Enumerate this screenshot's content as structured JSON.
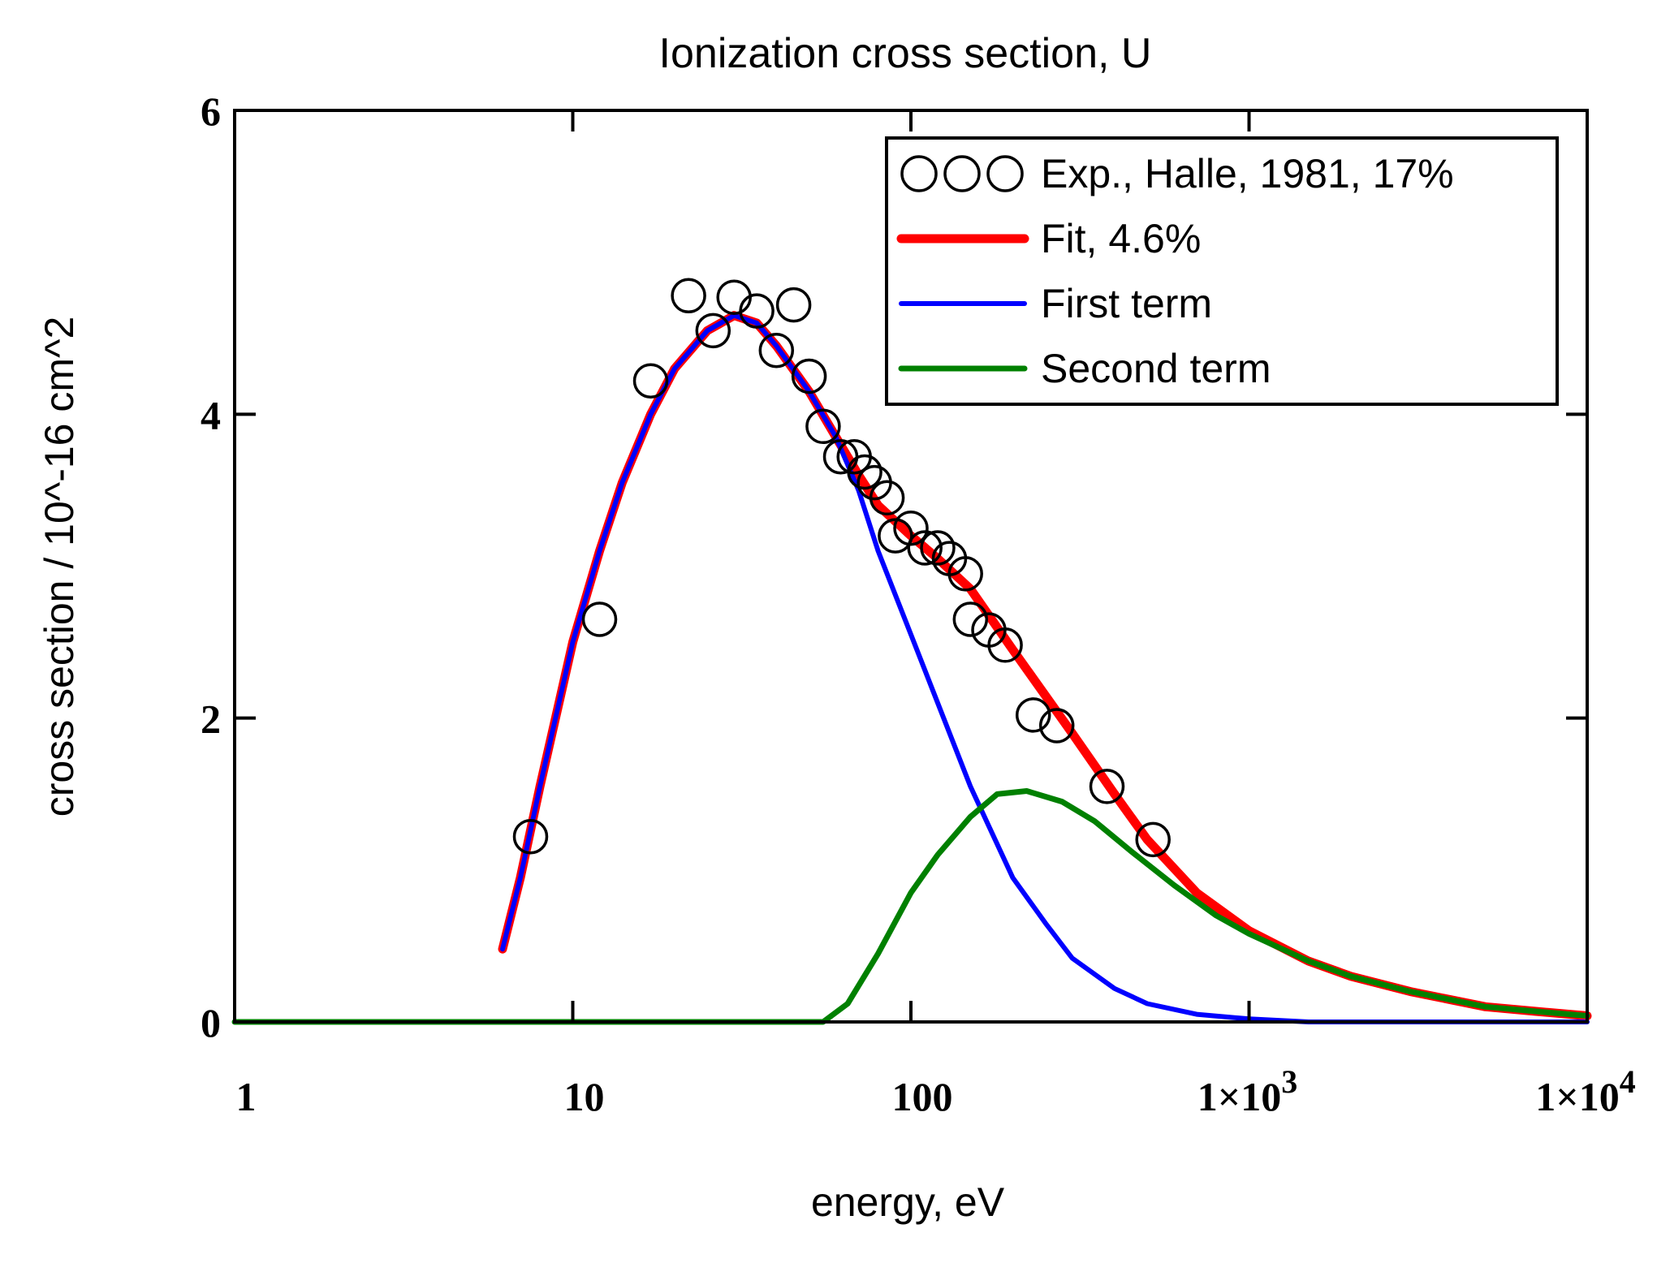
{
  "chart_data": {
    "type": "line",
    "title": "Ionization cross section, U",
    "xlabel": "energy, eV",
    "ylabel": "cross section / 10^-16 cm^2",
    "xscale": "log",
    "xlim": [
      1,
      10000
    ],
    "ylim": [
      0,
      6
    ],
    "grid": false,
    "legend_position": "top-right",
    "x_ticks": [
      {
        "value": 1,
        "label": "1"
      },
      {
        "value": 10,
        "label": "10"
      },
      {
        "value": 100,
        "label": "100"
      },
      {
        "value": 1000,
        "label": "1×10",
        "exp": "3"
      },
      {
        "value": 10000,
        "label": "1×10",
        "exp": "4"
      }
    ],
    "y_ticks": [
      {
        "value": 0,
        "label": "0"
      },
      {
        "value": 2,
        "label": "2"
      },
      {
        "value": 4,
        "label": "4"
      },
      {
        "value": 6,
        "label": "6"
      }
    ],
    "series": [
      {
        "name": "Exp., Halle, 1981, 17%",
        "kind": "markers",
        "color": "#000000",
        "points": [
          [
            7.5,
            1.22
          ],
          [
            12,
            2.65
          ],
          [
            17,
            4.22
          ],
          [
            22,
            4.78
          ],
          [
            26,
            4.55
          ],
          [
            30,
            4.77
          ],
          [
            35,
            4.68
          ],
          [
            40,
            4.42
          ],
          [
            45,
            4.72
          ],
          [
            50,
            4.25
          ],
          [
            55,
            3.92
          ],
          [
            62,
            3.72
          ],
          [
            68,
            3.72
          ],
          [
            73,
            3.62
          ],
          [
            78,
            3.55
          ],
          [
            85,
            3.45
          ],
          [
            90,
            3.2
          ],
          [
            100,
            3.25
          ],
          [
            110,
            3.12
          ],
          [
            120,
            3.12
          ],
          [
            130,
            3.05
          ],
          [
            145,
            2.95
          ],
          [
            150,
            2.65
          ],
          [
            170,
            2.58
          ],
          [
            190,
            2.48
          ],
          [
            230,
            2.02
          ],
          [
            270,
            1.95
          ],
          [
            380,
            1.55
          ],
          [
            520,
            1.2
          ]
        ]
      },
      {
        "name": "Fit, 4.6%",
        "kind": "line",
        "color": "#ff0000",
        "points": [
          [
            6.2,
            0.48
          ],
          [
            7,
            0.95
          ],
          [
            8,
            1.55
          ],
          [
            9,
            2.05
          ],
          [
            10,
            2.5
          ],
          [
            12,
            3.1
          ],
          [
            14,
            3.55
          ],
          [
            17,
            4.0
          ],
          [
            20,
            4.3
          ],
          [
            25,
            4.55
          ],
          [
            30,
            4.65
          ],
          [
            35,
            4.6
          ],
          [
            40,
            4.45
          ],
          [
            50,
            4.15
          ],
          [
            60,
            3.85
          ],
          [
            70,
            3.6
          ],
          [
            80,
            3.4
          ],
          [
            100,
            3.2
          ],
          [
            120,
            3.05
          ],
          [
            150,
            2.85
          ],
          [
            200,
            2.45
          ],
          [
            300,
            1.9
          ],
          [
            400,
            1.5
          ],
          [
            500,
            1.2
          ],
          [
            700,
            0.85
          ],
          [
            1000,
            0.6
          ],
          [
            1500,
            0.4
          ],
          [
            2000,
            0.3
          ],
          [
            3000,
            0.2
          ],
          [
            5000,
            0.1
          ],
          [
            7000,
            0.07
          ],
          [
            10000,
            0.04
          ]
        ]
      },
      {
        "name": "First term",
        "kind": "line",
        "color": "#0000ff",
        "points": [
          [
            6.2,
            0.48
          ],
          [
            7,
            0.95
          ],
          [
            8,
            1.55
          ],
          [
            9,
            2.05
          ],
          [
            10,
            2.5
          ],
          [
            12,
            3.1
          ],
          [
            14,
            3.55
          ],
          [
            17,
            4.0
          ],
          [
            20,
            4.3
          ],
          [
            25,
            4.55
          ],
          [
            30,
            4.65
          ],
          [
            35,
            4.6
          ],
          [
            40,
            4.45
          ],
          [
            50,
            4.15
          ],
          [
            60,
            3.85
          ],
          [
            70,
            3.5
          ],
          [
            80,
            3.1
          ],
          [
            100,
            2.55
          ],
          [
            120,
            2.1
          ],
          [
            150,
            1.55
          ],
          [
            200,
            0.95
          ],
          [
            250,
            0.65
          ],
          [
            300,
            0.42
          ],
          [
            400,
            0.22
          ],
          [
            500,
            0.12
          ],
          [
            700,
            0.05
          ],
          [
            1000,
            0.02
          ],
          [
            1500,
            0.0
          ],
          [
            3000,
            0.0
          ],
          [
            10000,
            0.0
          ]
        ]
      },
      {
        "name": "Second term",
        "kind": "line",
        "color": "#008000",
        "points": [
          [
            1,
            0.0
          ],
          [
            10,
            0.0
          ],
          [
            55,
            0.0
          ],
          [
            65,
            0.12
          ],
          [
            80,
            0.45
          ],
          [
            100,
            0.85
          ],
          [
            120,
            1.1
          ],
          [
            150,
            1.35
          ],
          [
            180,
            1.5
          ],
          [
            220,
            1.52
          ],
          [
            280,
            1.45
          ],
          [
            350,
            1.32
          ],
          [
            450,
            1.12
          ],
          [
            600,
            0.9
          ],
          [
            800,
            0.7
          ],
          [
            1000,
            0.58
          ],
          [
            1500,
            0.4
          ],
          [
            2000,
            0.3
          ],
          [
            3000,
            0.2
          ],
          [
            5000,
            0.1
          ],
          [
            7000,
            0.07
          ],
          [
            10000,
            0.04
          ]
        ]
      }
    ]
  }
}
